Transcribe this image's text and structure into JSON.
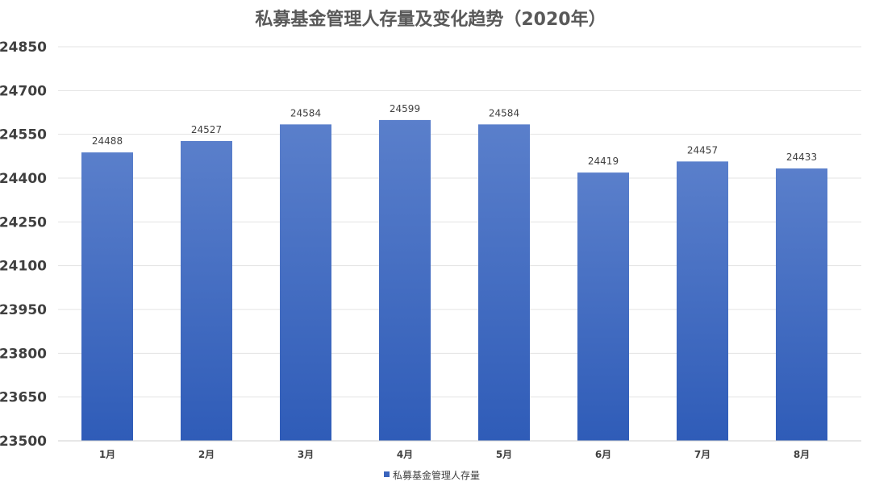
{
  "chart_data": {
    "type": "bar",
    "title": "私募基金管理人存量及变化趋势（2020年）",
    "categories": [
      "1月",
      "2月",
      "3月",
      "4月",
      "5月",
      "6月",
      "7月",
      "8月"
    ],
    "series": [
      {
        "name": "私募基金管理人存量",
        "values": [
          24488,
          24527,
          24584,
          24599,
          24584,
          24419,
          24457,
          24433
        ]
      }
    ],
    "ylim": [
      23500,
      24850
    ],
    "yticks": [
      23500,
      23650,
      23800,
      23950,
      24100,
      24250,
      24400,
      24550,
      24700,
      24850
    ],
    "grid": true,
    "legend_position": "bottom",
    "data_labels": true,
    "colors": {
      "bar_top": "#5a7fcb",
      "bar_bottom": "#2f5cb8",
      "legend_marker": "#3a64bd"
    }
  }
}
